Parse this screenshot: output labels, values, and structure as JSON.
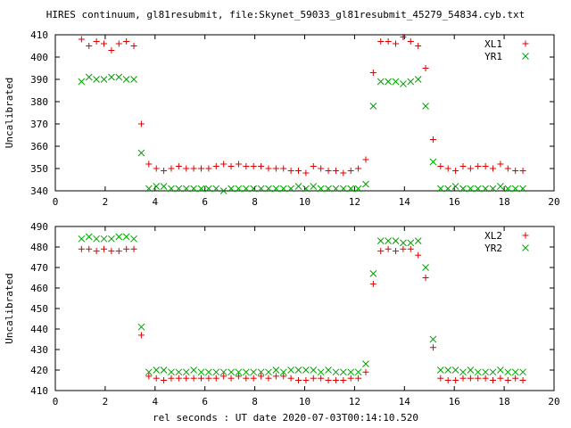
{
  "title": "HIRES continuum, gl81resubmit, file:Skynet_59033_gl81resubmit_45279_54834.cyb.txt",
  "xlabel": "rel seconds : UT date 2020-07-03T00:14:10.520",
  "chart_data": [
    {
      "type": "scatter",
      "ylabel": "Uncalibrated",
      "xlim": [
        0,
        20
      ],
      "ylim": [
        340,
        410
      ],
      "xticks": [
        0,
        2,
        4,
        6,
        8,
        10,
        12,
        14,
        16,
        18,
        20
      ],
      "yticks": [
        340,
        350,
        360,
        370,
        380,
        390,
        400,
        410
      ],
      "legend_position": "top-right",
      "grid": false,
      "series": [
        {
          "name": "XL1",
          "marker": "+",
          "color": "#e00000",
          "x": [
            1.05,
            1.35,
            1.65,
            1.95,
            2.25,
            2.55,
            2.85,
            3.15,
            3.45,
            3.75,
            4.05,
            4.35,
            4.65,
            4.95,
            5.25,
            5.55,
            5.85,
            6.15,
            6.45,
            6.75,
            7.05,
            7.35,
            7.65,
            7.95,
            8.25,
            8.55,
            8.85,
            9.15,
            9.45,
            9.75,
            10.05,
            10.35,
            10.65,
            10.95,
            11.25,
            11.55,
            11.85,
            12.15,
            12.45,
            12.75,
            13.05,
            13.35,
            13.65,
            13.95,
            14.25,
            14.55,
            14.85,
            15.15,
            15.45,
            15.75,
            16.05,
            16.35,
            16.65,
            16.95,
            17.25,
            17.55,
            17.85,
            18.15,
            18.45,
            18.75
          ],
          "y": [
            408,
            405,
            407,
            406,
            403,
            406,
            407,
            405,
            370,
            352,
            350,
            349,
            350,
            351,
            350,
            350,
            350,
            350,
            351,
            352,
            351,
            352,
            351,
            351,
            351,
            350,
            350,
            350,
            349,
            349,
            348,
            351,
            350,
            349,
            349,
            348,
            349,
            350,
            354,
            393,
            407,
            407,
            406,
            409,
            407,
            405,
            395,
            363,
            351,
            350,
            349,
            351,
            350,
            351,
            351,
            350,
            352,
            350,
            349,
            349
          ]
        },
        {
          "name": "YR1",
          "marker": "x",
          "color": "#00a000",
          "x": [
            1.05,
            1.35,
            1.65,
            1.95,
            2.25,
            2.55,
            2.85,
            3.15,
            3.45,
            3.75,
            4.05,
            4.35,
            4.65,
            4.95,
            5.25,
            5.55,
            5.85,
            6.15,
            6.45,
            6.75,
            7.05,
            7.35,
            7.65,
            7.95,
            8.25,
            8.55,
            8.85,
            9.15,
            9.45,
            9.75,
            10.05,
            10.35,
            10.65,
            10.95,
            11.25,
            11.55,
            11.85,
            12.15,
            12.45,
            12.75,
            13.05,
            13.35,
            13.65,
            13.95,
            14.25,
            14.55,
            14.85,
            15.15,
            15.45,
            15.75,
            16.05,
            16.35,
            16.65,
            16.95,
            17.25,
            17.55,
            17.85,
            18.15,
            18.45,
            18.75
          ],
          "y": [
            389,
            391,
            390,
            390,
            391,
            391,
            390,
            390,
            357,
            341,
            342,
            342,
            341,
            341,
            341,
            341,
            341,
            341,
            341,
            340,
            341,
            341,
            341,
            341,
            341,
            341,
            341,
            341,
            341,
            342,
            341,
            342,
            341,
            341,
            341,
            341,
            341,
            341,
            343,
            378,
            389,
            389,
            389,
            388,
            389,
            390,
            378,
            353,
            341,
            341,
            342,
            341,
            341,
            341,
            341,
            341,
            342,
            341,
            341,
            341
          ]
        }
      ]
    },
    {
      "type": "scatter",
      "ylabel": "Uncalibrated",
      "xlim": [
        0,
        20
      ],
      "ylim": [
        410,
        490
      ],
      "xticks": [
        0,
        2,
        4,
        6,
        8,
        10,
        12,
        14,
        16,
        18,
        20
      ],
      "yticks": [
        410,
        420,
        430,
        440,
        450,
        460,
        470,
        480,
        490
      ],
      "legend_position": "top-right",
      "grid": false,
      "series": [
        {
          "name": "XL2",
          "marker": "+",
          "color": "#e00000",
          "x": [
            1.05,
            1.35,
            1.65,
            1.95,
            2.25,
            2.55,
            2.85,
            3.15,
            3.45,
            3.75,
            4.05,
            4.35,
            4.65,
            4.95,
            5.25,
            5.55,
            5.85,
            6.15,
            6.45,
            6.75,
            7.05,
            7.35,
            7.65,
            7.95,
            8.25,
            8.55,
            8.85,
            9.15,
            9.45,
            9.75,
            10.05,
            10.35,
            10.65,
            10.95,
            11.25,
            11.55,
            11.85,
            12.15,
            12.45,
            12.75,
            13.05,
            13.35,
            13.65,
            13.95,
            14.25,
            14.55,
            14.85,
            15.15,
            15.45,
            15.75,
            16.05,
            16.35,
            16.65,
            16.95,
            17.25,
            17.55,
            17.85,
            18.15,
            18.45,
            18.75
          ],
          "y": [
            479,
            479,
            478,
            479,
            478,
            478,
            479,
            479,
            437,
            417,
            416,
            415,
            416,
            416,
            416,
            416,
            416,
            416,
            416,
            417,
            416,
            417,
            416,
            416,
            417,
            416,
            417,
            417,
            416,
            415,
            415,
            416,
            416,
            415,
            415,
            415,
            416,
            416,
            419,
            462,
            478,
            479,
            478,
            479,
            479,
            476,
            465,
            431,
            416,
            415,
            415,
            416,
            416,
            416,
            416,
            415,
            416,
            415,
            416,
            415
          ]
        },
        {
          "name": "YR2",
          "marker": "x",
          "color": "#00a000",
          "x": [
            1.05,
            1.35,
            1.65,
            1.95,
            2.25,
            2.55,
            2.85,
            3.15,
            3.45,
            3.75,
            4.05,
            4.35,
            4.65,
            4.95,
            5.25,
            5.55,
            5.85,
            6.15,
            6.45,
            6.75,
            7.05,
            7.35,
            7.65,
            7.95,
            8.25,
            8.55,
            8.85,
            9.15,
            9.45,
            9.75,
            10.05,
            10.35,
            10.65,
            10.95,
            11.25,
            11.55,
            11.85,
            12.15,
            12.45,
            12.75,
            13.05,
            13.35,
            13.65,
            13.95,
            14.25,
            14.55,
            14.85,
            15.15,
            15.45,
            15.75,
            16.05,
            16.35,
            16.65,
            16.95,
            17.25,
            17.55,
            17.85,
            18.15,
            18.45,
            18.75
          ],
          "y": [
            484,
            485,
            484,
            484,
            484,
            485,
            485,
            484,
            441,
            419,
            420,
            420,
            419,
            419,
            419,
            420,
            419,
            419,
            419,
            419,
            419,
            419,
            419,
            419,
            419,
            419,
            420,
            419,
            420,
            420,
            420,
            420,
            419,
            420,
            419,
            419,
            419,
            419,
            423,
            467,
            483,
            483,
            483,
            482,
            482,
            483,
            470,
            435,
            420,
            420,
            420,
            419,
            420,
            419,
            419,
            419,
            420,
            419,
            419,
            419
          ]
        }
      ]
    }
  ]
}
